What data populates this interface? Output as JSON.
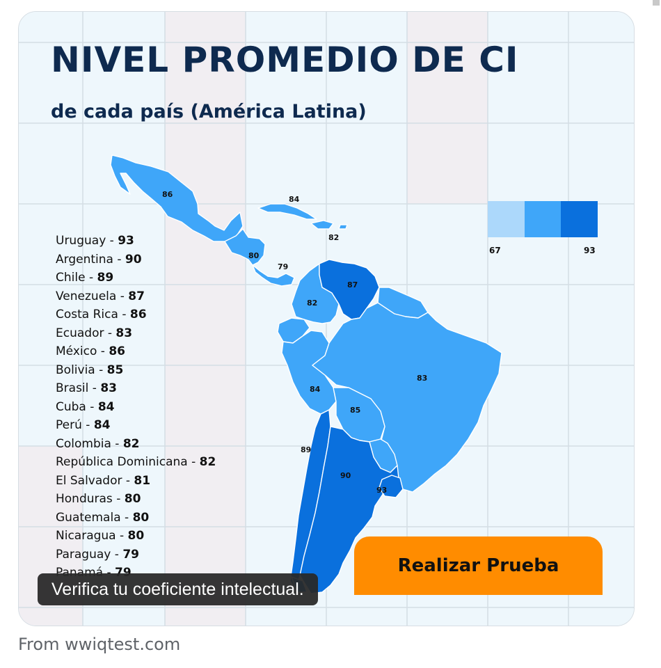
{
  "title": "NIVEL PROMEDIO DE CI",
  "subtitle": "de cada país (América Latina)",
  "ranking": [
    {
      "country": "Uruguay",
      "iq": "93"
    },
    {
      "country": "Argentina",
      "iq": "90"
    },
    {
      "country": "Chile",
      "iq": "89"
    },
    {
      "country": "Venezuela",
      "iq": "87"
    },
    {
      "country": "Costa Rica",
      "iq": "86"
    },
    {
      "country": "Ecuador",
      "iq": "83"
    },
    {
      "country": "México",
      "iq": "86"
    },
    {
      "country": "Bolivia",
      "iq": "85"
    },
    {
      "country": "Brasil",
      "iq": "83"
    },
    {
      "country": "Cuba",
      "iq": "84"
    },
    {
      "country": "Perú",
      "iq": "84"
    },
    {
      "country": "Colombia",
      "iq": "82"
    },
    {
      "country": "República Dominicana",
      "iq": "82"
    },
    {
      "country": "El Salvador",
      "iq": "81"
    },
    {
      "country": "Honduras",
      "iq": "80"
    },
    {
      "country": "Guatemala",
      "iq": "80"
    },
    {
      "country": "Nicaragua",
      "iq": "80"
    },
    {
      "country": "Paraguay",
      "iq": "79"
    },
    {
      "country": "Panamá",
      "iq": "79"
    }
  ],
  "map_labels": {
    "mexico": "86",
    "cuba": "84",
    "dominican_republic": "82",
    "central_america": "80",
    "panama": "79",
    "venezuela": "87",
    "colombia": "82",
    "peru": "84",
    "brazil": "83",
    "bolivia": "85",
    "chile": "89",
    "argentina": "90",
    "uruguay": "93"
  },
  "legend": {
    "min": "67",
    "max": "93",
    "colors": [
      "#acd8fb",
      "#3fa6f9",
      "#0a70dd"
    ]
  },
  "colors": {
    "title": "#0e2a4f",
    "background": "#eef7fc",
    "grid": "#d4dde4",
    "cta": "#ff8c00"
  },
  "cta_label": "Realizar Prueba",
  "caption": "Verifica tu coeficiente intelectual.",
  "source": "From wwiqtest.com"
}
